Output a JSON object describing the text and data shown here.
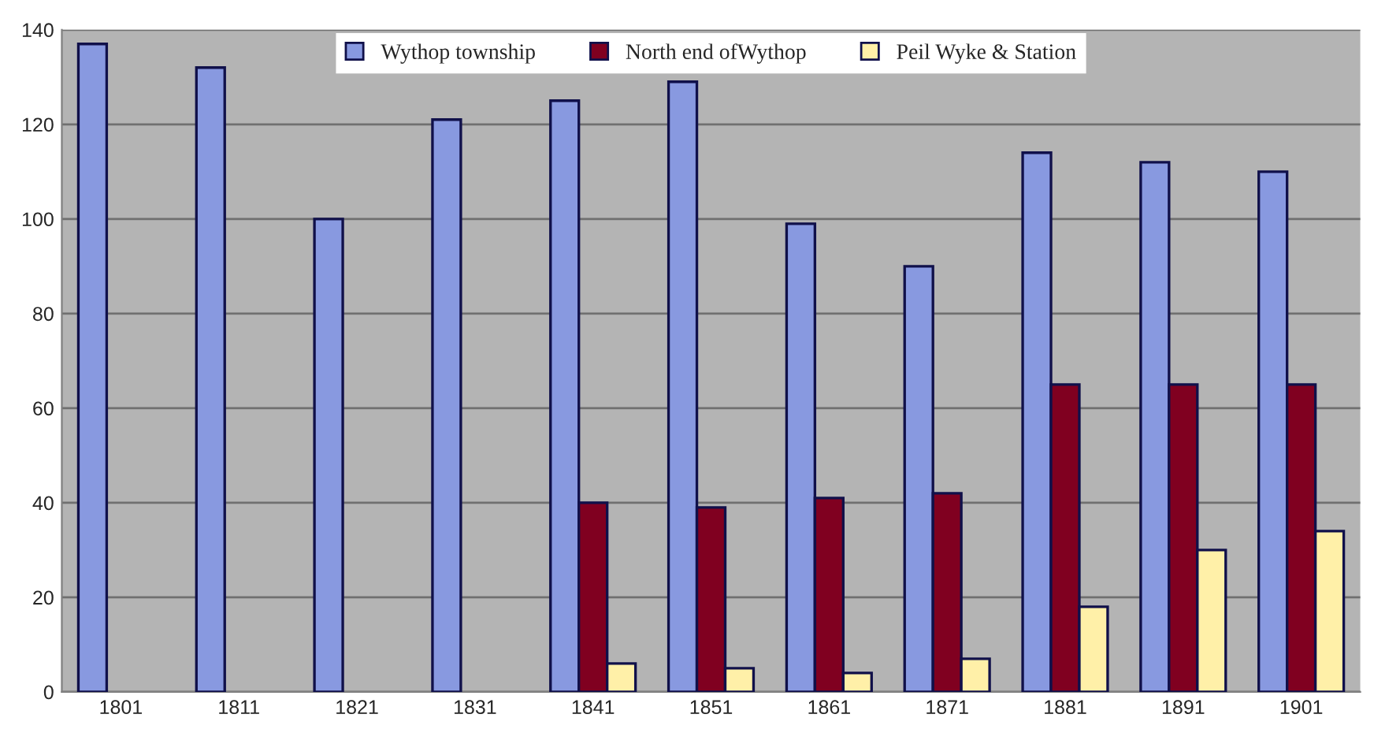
{
  "chart_data": {
    "type": "bar",
    "categories": [
      "1801",
      "1811",
      "1821",
      "1831",
      "1841",
      "1851",
      "1861",
      "1871",
      "1881",
      "1891",
      "1901"
    ],
    "series": [
      {
        "name": "Wythop township",
        "color": "#8899e0",
        "values": [
          137,
          132,
          100,
          121,
          125,
          129,
          99,
          90,
          114,
          112,
          110
        ]
      },
      {
        "name": "North end ofWythop",
        "color": "#800020",
        "values": [
          null,
          null,
          null,
          null,
          40,
          39,
          41,
          42,
          65,
          65,
          65
        ]
      },
      {
        "name": "Peil Wyke & Station",
        "color": "#fff0a8",
        "values": [
          null,
          null,
          null,
          null,
          6,
          5,
          4,
          7,
          18,
          30,
          34
        ]
      }
    ],
    "ylim": [
      0,
      140
    ],
    "yticks": [
      0,
      20,
      40,
      60,
      80,
      100,
      120,
      140
    ],
    "grid": "y",
    "legend": "top"
  }
}
